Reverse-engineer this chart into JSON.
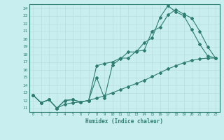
{
  "xlabel": "Humidex (Indice chaleur)",
  "ylabel": "",
  "bg_color": "#c8eef0",
  "grid_color": "#b8dede",
  "line_color": "#2e7e70",
  "xlim": [
    -0.5,
    23.5
  ],
  "ylim": [
    10.5,
    24.5
  ],
  "xticks": [
    0,
    1,
    2,
    3,
    4,
    5,
    6,
    7,
    8,
    9,
    10,
    11,
    12,
    13,
    14,
    15,
    16,
    17,
    18,
    19,
    20,
    21,
    22,
    23
  ],
  "yticks": [
    11,
    12,
    13,
    14,
    15,
    16,
    17,
    18,
    19,
    20,
    21,
    22,
    23,
    24
  ],
  "line1_x": [
    0,
    1,
    2,
    3,
    4,
    5,
    6,
    7,
    8,
    9,
    10,
    11,
    12,
    13,
    14,
    15,
    16,
    17,
    18,
    19,
    20,
    21,
    22,
    23
  ],
  "line1_y": [
    12.7,
    11.7,
    12.1,
    11.0,
    12.0,
    12.1,
    11.8,
    12.0,
    15.0,
    12.3,
    16.6,
    17.4,
    18.3,
    18.3,
    19.5,
    20.1,
    22.8,
    24.3,
    23.5,
    23.0,
    21.2,
    19.3,
    17.8,
    17.5
  ],
  "line2_x": [
    0,
    1,
    2,
    3,
    4,
    5,
    6,
    7,
    8,
    9,
    10,
    11,
    12,
    13,
    14,
    15,
    16,
    17,
    18,
    19,
    20,
    21,
    22,
    23
  ],
  "line2_y": [
    12.7,
    11.7,
    12.1,
    11.0,
    12.0,
    12.1,
    11.8,
    12.0,
    16.5,
    16.8,
    17.0,
    17.5,
    17.5,
    18.4,
    18.5,
    21.0,
    21.5,
    23.1,
    23.8,
    23.2,
    22.7,
    21.0,
    19.0,
    17.5
  ],
  "line3_x": [
    0,
    1,
    2,
    3,
    4,
    5,
    6,
    7,
    8,
    9,
    10,
    11,
    12,
    13,
    14,
    15,
    16,
    17,
    18,
    19,
    20,
    21,
    22,
    23
  ],
  "line3_y": [
    12.7,
    11.7,
    12.1,
    11.0,
    11.5,
    11.7,
    11.8,
    12.0,
    12.3,
    12.6,
    13.0,
    13.4,
    13.8,
    14.2,
    14.6,
    15.1,
    15.6,
    16.1,
    16.5,
    16.9,
    17.2,
    17.4,
    17.5,
    17.5
  ]
}
